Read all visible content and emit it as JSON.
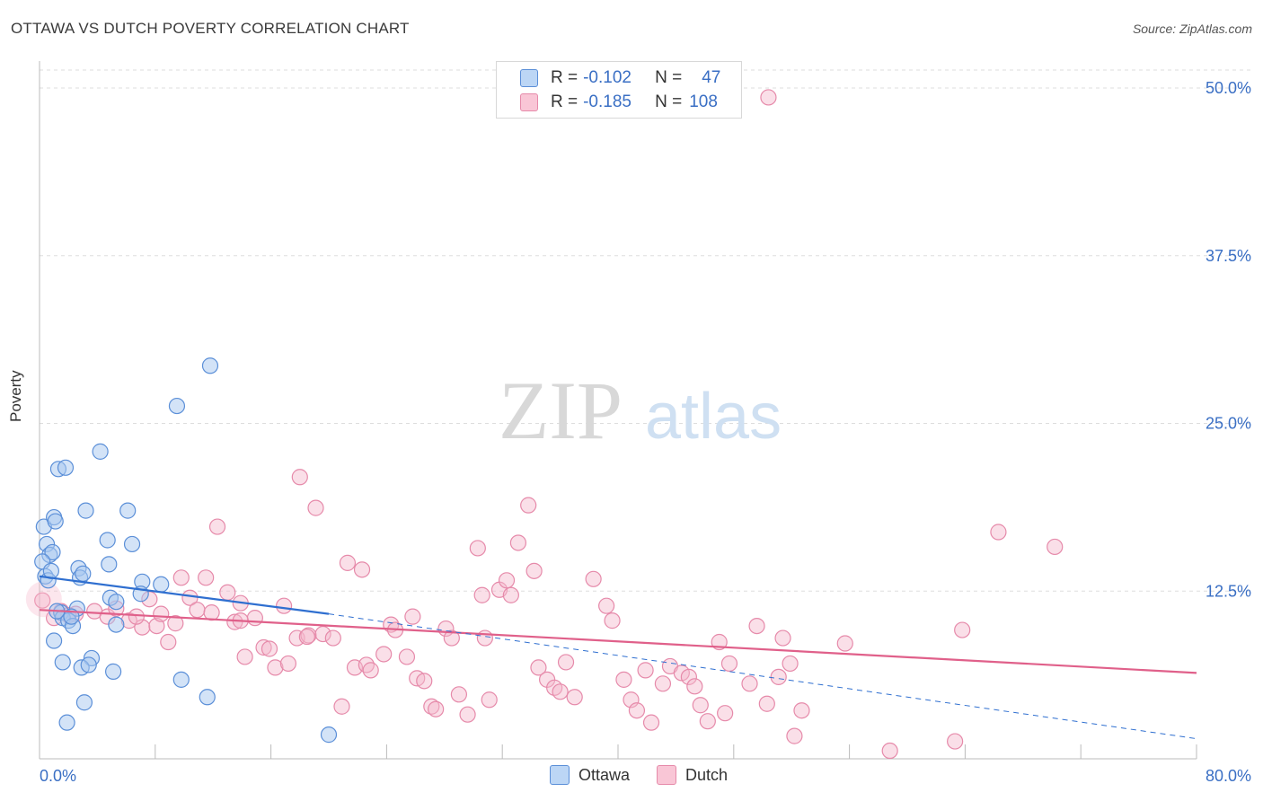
{
  "header": {
    "title": "OTTAWA VS DUTCH POVERTY CORRELATION CHART",
    "source": "Source: ZipAtlas.com"
  },
  "watermark": {
    "part1": "ZIP",
    "part2": "atlas"
  },
  "legend": {
    "ottawa": {
      "r_label": "R =",
      "r_value": "-0.102",
      "n_label": "N =",
      "n_value": "47"
    },
    "dutch": {
      "r_label": "R =",
      "r_value": "-0.185",
      "n_label": "N =",
      "n_value": "108"
    }
  },
  "colors": {
    "ottawa_fill": "#a8c8f0",
    "ottawa_stroke": "#5b8fd8",
    "ottawa_line": "#2f6fd0",
    "dutch_fill": "#f5b8cc",
    "dutch_stroke": "#e68aaa",
    "dutch_line": "#e0608a",
    "tick_label": "#3a6fc4",
    "grid": "#dddddd"
  },
  "chart_data": {
    "type": "scatter",
    "title": "OTTAWA VS DUTCH POVERTY CORRELATION CHART",
    "xlabel": "",
    "ylabel": "Poverty",
    "xlim": [
      0,
      80
    ],
    "ylim": [
      0,
      50
    ],
    "x_tick_labels": [
      "0.0%",
      "80.0%"
    ],
    "y_ticks": [
      12.5,
      25.0,
      37.5,
      50.0
    ],
    "y_tick_labels": [
      "12.5%",
      "25.0%",
      "37.5%",
      "50.0%"
    ],
    "grid": true,
    "legend_position": "top-center",
    "series": [
      {
        "name": "Ottawa",
        "trend": {
          "x": [
            0,
            20
          ],
          "y": [
            13.6,
            10.8
          ],
          "dashed_extension_to": [
            80,
            1.5
          ]
        },
        "points": [
          [
            0.3,
            17.3
          ],
          [
            0.5,
            16.0
          ],
          [
            0.7,
            15.2
          ],
          [
            0.9,
            15.4
          ],
          [
            0.4,
            13.6
          ],
          [
            0.6,
            13.3
          ],
          [
            1.0,
            18.0
          ],
          [
            1.1,
            17.7
          ],
          [
            1.3,
            21.6
          ],
          [
            1.8,
            21.7
          ],
          [
            3.2,
            18.5
          ],
          [
            4.2,
            22.9
          ],
          [
            6.1,
            18.5
          ],
          [
            4.7,
            16.3
          ],
          [
            6.4,
            16.0
          ],
          [
            4.8,
            14.5
          ],
          [
            2.7,
            14.2
          ],
          [
            2.8,
            13.5
          ],
          [
            7.1,
            13.2
          ],
          [
            8.4,
            13.0
          ],
          [
            7.0,
            12.3
          ],
          [
            4.9,
            12.0
          ],
          [
            5.3,
            11.7
          ],
          [
            2.6,
            11.2
          ],
          [
            1.5,
            10.9
          ],
          [
            1.6,
            10.5
          ],
          [
            2.0,
            10.3
          ],
          [
            2.3,
            9.9
          ],
          [
            5.3,
            10.0
          ],
          [
            1.0,
            8.8
          ],
          [
            3.6,
            7.5
          ],
          [
            1.6,
            7.2
          ],
          [
            2.9,
            6.8
          ],
          [
            3.4,
            7.0
          ],
          [
            5.1,
            6.5
          ],
          [
            9.8,
            5.9
          ],
          [
            11.6,
            4.6
          ],
          [
            3.1,
            4.2
          ],
          [
            1.9,
            2.7
          ],
          [
            9.5,
            26.3
          ],
          [
            11.8,
            29.3
          ],
          [
            20.0,
            1.8
          ],
          [
            0.2,
            14.7
          ],
          [
            0.8,
            14.0
          ],
          [
            1.2,
            11.0
          ],
          [
            3.0,
            13.8
          ],
          [
            2.2,
            10.6
          ]
        ]
      },
      {
        "name": "Dutch",
        "trend": {
          "x": [
            0,
            80
          ],
          "y": [
            11.1,
            6.4
          ]
        },
        "points": [
          [
            0.2,
            11.8
          ],
          [
            1.0,
            10.5
          ],
          [
            1.5,
            11.0
          ],
          [
            2.5,
            10.8
          ],
          [
            3.8,
            11.0
          ],
          [
            4.7,
            10.6
          ],
          [
            5.3,
            11.2
          ],
          [
            6.2,
            10.3
          ],
          [
            7.1,
            9.8
          ],
          [
            7.6,
            11.9
          ],
          [
            8.1,
            9.9
          ],
          [
            8.4,
            10.8
          ],
          [
            8.9,
            8.7
          ],
          [
            9.4,
            10.1
          ],
          [
            9.8,
            13.5
          ],
          [
            10.4,
            12.0
          ],
          [
            10.9,
            11.1
          ],
          [
            11.5,
            13.5
          ],
          [
            11.9,
            10.9
          ],
          [
            12.3,
            17.3
          ],
          [
            13.0,
            12.4
          ],
          [
            13.5,
            10.2
          ],
          [
            13.9,
            11.6
          ],
          [
            14.2,
            7.6
          ],
          [
            14.9,
            10.5
          ],
          [
            15.5,
            8.3
          ],
          [
            15.9,
            8.2
          ],
          [
            16.3,
            6.8
          ],
          [
            16.9,
            11.4
          ],
          [
            17.2,
            7.1
          ],
          [
            17.8,
            9.0
          ],
          [
            18.0,
            21.0
          ],
          [
            18.6,
            9.2
          ],
          [
            19.1,
            18.7
          ],
          [
            19.6,
            9.3
          ],
          [
            20.3,
            9.0
          ],
          [
            20.9,
            3.9
          ],
          [
            21.3,
            14.6
          ],
          [
            21.8,
            6.8
          ],
          [
            22.3,
            14.1
          ],
          [
            22.6,
            7.0
          ],
          [
            22.9,
            6.6
          ],
          [
            23.8,
            7.8
          ],
          [
            24.3,
            10.0
          ],
          [
            24.6,
            9.6
          ],
          [
            25.4,
            7.6
          ],
          [
            25.8,
            10.6
          ],
          [
            26.1,
            6.0
          ],
          [
            26.6,
            5.8
          ],
          [
            27.1,
            3.9
          ],
          [
            27.4,
            3.7
          ],
          [
            28.1,
            9.7
          ],
          [
            28.5,
            9.0
          ],
          [
            29.0,
            4.8
          ],
          [
            29.6,
            3.3
          ],
          [
            30.3,
            15.7
          ],
          [
            30.6,
            12.2
          ],
          [
            31.1,
            4.4
          ],
          [
            31.8,
            12.6
          ],
          [
            32.3,
            13.3
          ],
          [
            32.6,
            12.2
          ],
          [
            33.1,
            16.1
          ],
          [
            33.8,
            18.9
          ],
          [
            34.2,
            14.0
          ],
          [
            34.5,
            6.8
          ],
          [
            35.1,
            5.9
          ],
          [
            35.6,
            5.3
          ],
          [
            36.0,
            5.0
          ],
          [
            36.4,
            7.2
          ],
          [
            37.0,
            4.6
          ],
          [
            38.3,
            13.4
          ],
          [
            39.2,
            11.4
          ],
          [
            39.6,
            10.3
          ],
          [
            40.4,
            5.9
          ],
          [
            40.9,
            4.4
          ],
          [
            41.3,
            3.6
          ],
          [
            41.9,
            6.6
          ],
          [
            42.3,
            2.7
          ],
          [
            43.1,
            5.6
          ],
          [
            43.6,
            6.9
          ],
          [
            44.4,
            6.4
          ],
          [
            44.9,
            6.1
          ],
          [
            45.3,
            5.4
          ],
          [
            45.7,
            4.0
          ],
          [
            46.2,
            2.8
          ],
          [
            47.0,
            8.7
          ],
          [
            47.4,
            3.4
          ],
          [
            47.7,
            7.1
          ],
          [
            49.1,
            5.6
          ],
          [
            49.6,
            9.9
          ],
          [
            50.3,
            4.1
          ],
          [
            51.1,
            6.1
          ],
          [
            51.4,
            9.0
          ],
          [
            51.9,
            7.1
          ],
          [
            52.2,
            1.7
          ],
          [
            52.7,
            3.6
          ],
          [
            55.7,
            8.6
          ],
          [
            58.8,
            0.6
          ],
          [
            63.3,
            1.3
          ],
          [
            63.8,
            9.6
          ],
          [
            66.3,
            16.9
          ],
          [
            70.2,
            15.8
          ],
          [
            50.4,
            49.3
          ],
          [
            13.9,
            10.3
          ],
          [
            2.0,
            10.7
          ],
          [
            6.7,
            10.6
          ],
          [
            18.5,
            9.1
          ],
          [
            30.8,
            9.0
          ]
        ]
      }
    ]
  },
  "bottom_legend": {
    "ottawa_label": "Ottawa",
    "dutch_label": "Dutch"
  }
}
